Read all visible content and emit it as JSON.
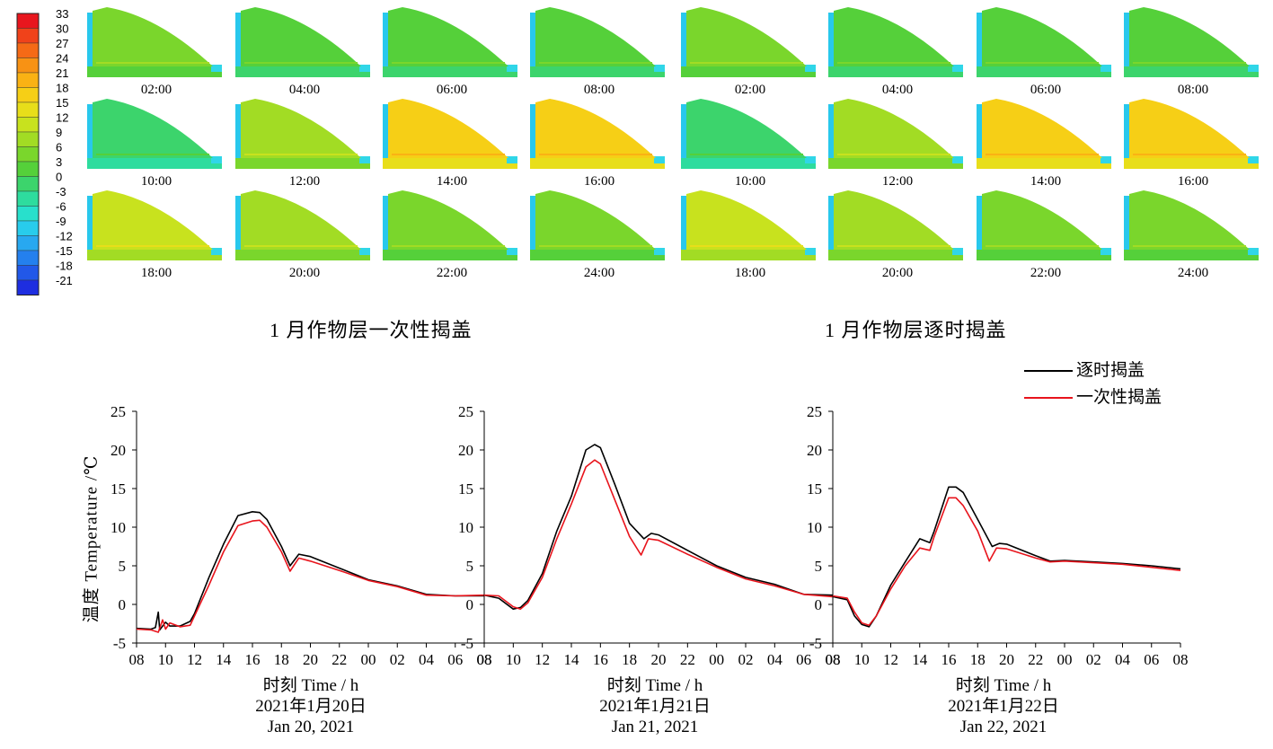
{
  "colorbar": {
    "ticks": [
      "33",
      "30",
      "27",
      "24",
      "21",
      "18",
      "15",
      "12",
      "9",
      "6",
      "3",
      "0",
      "-3",
      "-6",
      "-9",
      "-12",
      "-15",
      "-18",
      "-21"
    ],
    "colors": [
      "#e8161e",
      "#f0421a",
      "#f56a16",
      "#f89214",
      "#fab214",
      "#f6cf16",
      "#e8de1a",
      "#c8e21e",
      "#a2dc24",
      "#7ad62c",
      "#55d03a",
      "#3cd46c",
      "#2edc9e",
      "#28e0cc",
      "#28ccec",
      "#28a8f0",
      "#2480ee",
      "#2258e8",
      "#1e2ee0"
    ]
  },
  "panels": [
    {
      "caption": "1 月作物层一次性揭盖",
      "thumbnails": [
        {
          "time": "02:00",
          "level": 5.5
        },
        {
          "time": "04:00",
          "level": 4.5
        },
        {
          "time": "06:00",
          "level": 4
        },
        {
          "time": "08:00",
          "level": 3.5
        },
        {
          "time": "10:00",
          "level": 0
        },
        {
          "time": "12:00",
          "level": 8
        },
        {
          "time": "14:00",
          "level": 17
        },
        {
          "time": "16:00",
          "level": 19
        },
        {
          "time": "18:00",
          "level": 12
        },
        {
          "time": "20:00",
          "level": 8.5
        },
        {
          "time": "22:00",
          "level": 7.5
        },
        {
          "time": "24:00",
          "level": 7
        }
      ]
    },
    {
      "caption": "1 月作物层逐时揭盖",
      "thumbnails": [
        {
          "time": "02:00",
          "level": 6
        },
        {
          "time": "04:00",
          "level": 4.5
        },
        {
          "time": "06:00",
          "level": 4
        },
        {
          "time": "08:00",
          "level": 3.5
        },
        {
          "time": "10:00",
          "level": 0
        },
        {
          "time": "12:00",
          "level": 8
        },
        {
          "time": "14:00",
          "level": 17
        },
        {
          "time": "16:00",
          "level": 19
        },
        {
          "time": "18:00",
          "level": 12
        },
        {
          "time": "20:00",
          "level": 8.5
        },
        {
          "time": "22:00",
          "level": 7.5
        },
        {
          "time": "24:00",
          "level": 7
        }
      ]
    }
  ],
  "chart_data": {
    "type": "line",
    "ylabel": "温度 Temperature /℃",
    "ylim": [
      -5,
      25
    ],
    "yticks": [
      "-5",
      "0",
      "5",
      "10",
      "15",
      "20",
      "25"
    ],
    "xlim": [
      8,
      32
    ],
    "xticks": [
      "08",
      "10",
      "12",
      "14",
      "16",
      "18",
      "20",
      "22",
      "00",
      "02",
      "04",
      "06",
      "08"
    ],
    "legend": {
      "position": "top-right"
    },
    "panels": [
      {
        "xlabel": "时刻 Time / h",
        "date_cn": "2021年1月20日",
        "date_en": "Jan 20, 2021",
        "series": [
          {
            "name": "逐时揭盖",
            "color": "#000000",
            "points": [
              [
                8,
                -3.1
              ],
              [
                9,
                -3.2
              ],
              [
                9.3,
                -3.0
              ],
              [
                9.5,
                -1.0
              ],
              [
                9.6,
                -3.3
              ],
              [
                10,
                -2.3
              ],
              [
                10.3,
                -2.8
              ],
              [
                11,
                -2.8
              ],
              [
                11.7,
                -2.2
              ],
              [
                12,
                -1.2
              ],
              [
                13,
                3.5
              ],
              [
                14,
                7.8
              ],
              [
                15,
                11.5
              ],
              [
                16,
                12.0
              ],
              [
                16.5,
                11.9
              ],
              [
                17,
                11.0
              ],
              [
                18,
                7.5
              ],
              [
                18.6,
                5.0
              ],
              [
                19.2,
                6.5
              ],
              [
                20,
                6.2
              ],
              [
                22,
                4.7
              ],
              [
                24,
                3.2
              ],
              [
                26,
                2.4
              ],
              [
                28,
                1.3
              ],
              [
                30,
                1.1
              ],
              [
                32,
                1.1
              ]
            ]
          },
          {
            "name": "一次性揭盖",
            "color": "#e8141c",
            "points": [
              [
                8,
                -3.2
              ],
              [
                9,
                -3.3
              ],
              [
                9.5,
                -3.6
              ],
              [
                9.8,
                -2.0
              ],
              [
                10,
                -3.2
              ],
              [
                10.3,
                -2.4
              ],
              [
                11,
                -2.9
              ],
              [
                11.7,
                -2.7
              ],
              [
                12,
                -1.5
              ],
              [
                13,
                2.5
              ],
              [
                14,
                6.8
              ],
              [
                15,
                10.2
              ],
              [
                16,
                10.8
              ],
              [
                16.5,
                10.9
              ],
              [
                17,
                10.0
              ],
              [
                18,
                6.8
              ],
              [
                18.6,
                4.3
              ],
              [
                19.2,
                6.0
              ],
              [
                20,
                5.6
              ],
              [
                22,
                4.4
              ],
              [
                24,
                3.1
              ],
              [
                26,
                2.3
              ],
              [
                28,
                1.2
              ],
              [
                30,
                1.1
              ],
              [
                32,
                1.2
              ]
            ]
          }
        ]
      },
      {
        "xlabel": "时刻 Time / h",
        "date_cn": "2021年1月21日",
        "date_en": "Jan 21, 2021",
        "series": [
          {
            "name": "逐时揭盖",
            "color": "#000000",
            "points": [
              [
                8,
                1.2
              ],
              [
                9,
                0.8
              ],
              [
                10,
                -0.6
              ],
              [
                10.5,
                -0.4
              ],
              [
                11,
                0.5
              ],
              [
                12,
                4.0
              ],
              [
                13,
                9.5
              ],
              [
                14,
                14.0
              ],
              [
                15,
                20.0
              ],
              [
                15.6,
                20.7
              ],
              [
                16,
                20.3
              ],
              [
                17,
                15.5
              ],
              [
                18,
                10.5
              ],
              [
                19,
                8.5
              ],
              [
                19.5,
                9.2
              ],
              [
                20,
                9.0
              ],
              [
                22,
                7.0
              ],
              [
                24,
                5.0
              ],
              [
                26,
                3.5
              ],
              [
                28,
                2.6
              ],
              [
                30,
                1.3
              ],
              [
                32,
                1.2
              ]
            ]
          },
          {
            "name": "一次性揭盖",
            "color": "#e8141c",
            "points": [
              [
                8,
                1.2
              ],
              [
                9,
                1.1
              ],
              [
                10,
                -0.3
              ],
              [
                10.5,
                -0.6
              ],
              [
                11,
                0.2
              ],
              [
                12,
                3.5
              ],
              [
                13,
                8.5
              ],
              [
                14,
                13.0
              ],
              [
                15,
                17.8
              ],
              [
                15.6,
                18.7
              ],
              [
                16,
                18.2
              ],
              [
                17,
                13.5
              ],
              [
                18,
                8.8
              ],
              [
                18.8,
                6.4
              ],
              [
                19.3,
                8.5
              ],
              [
                20,
                8.3
              ],
              [
                22,
                6.5
              ],
              [
                24,
                4.8
              ],
              [
                26,
                3.3
              ],
              [
                28,
                2.4
              ],
              [
                30,
                1.3
              ],
              [
                32,
                1.0
              ]
            ]
          }
        ]
      },
      {
        "xlabel": "时刻 Time / h",
        "date_cn": "2021年1月22日",
        "date_en": "Jan 22, 2021",
        "series": [
          {
            "name": "逐时揭盖",
            "color": "#000000",
            "points": [
              [
                8,
                1.0
              ],
              [
                9,
                0.6
              ],
              [
                9.5,
                -1.5
              ],
              [
                10,
                -2.6
              ],
              [
                10.5,
                -2.9
              ],
              [
                11,
                -1.5
              ],
              [
                12,
                2.5
              ],
              [
                13,
                5.5
              ],
              [
                14,
                8.5
              ],
              [
                14.7,
                8.0
              ],
              [
                15,
                9.5
              ],
              [
                16,
                15.2
              ],
              [
                16.5,
                15.2
              ],
              [
                17,
                14.5
              ],
              [
                18,
                11.0
              ],
              [
                19,
                7.5
              ],
              [
                19.5,
                7.9
              ],
              [
                20,
                7.8
              ],
              [
                22,
                6.3
              ],
              [
                23,
                5.6
              ],
              [
                24,
                5.7
              ],
              [
                26,
                5.5
              ],
              [
                28,
                5.3
              ],
              [
                30,
                5.0
              ],
              [
                32,
                4.6
              ]
            ]
          },
          {
            "name": "一次性揭盖",
            "color": "#e8141c",
            "points": [
              [
                8,
                1.1
              ],
              [
                9,
                0.8
              ],
              [
                9.5,
                -1.0
              ],
              [
                10,
                -2.4
              ],
              [
                10.5,
                -2.7
              ],
              [
                11,
                -1.5
              ],
              [
                12,
                2.0
              ],
              [
                13,
                5.0
              ],
              [
                14,
                7.3
              ],
              [
                14.7,
                7.0
              ],
              [
                15,
                8.8
              ],
              [
                16,
                13.8
              ],
              [
                16.5,
                13.8
              ],
              [
                17,
                12.8
              ],
              [
                18,
                9.5
              ],
              [
                18.8,
                5.6
              ],
              [
                19.3,
                7.3
              ],
              [
                20,
                7.2
              ],
              [
                22,
                6.0
              ],
              [
                23,
                5.5
              ],
              [
                24,
                5.6
              ],
              [
                26,
                5.4
              ],
              [
                28,
                5.2
              ],
              [
                30,
                4.8
              ],
              [
                32,
                4.4
              ]
            ]
          }
        ]
      }
    ]
  }
}
